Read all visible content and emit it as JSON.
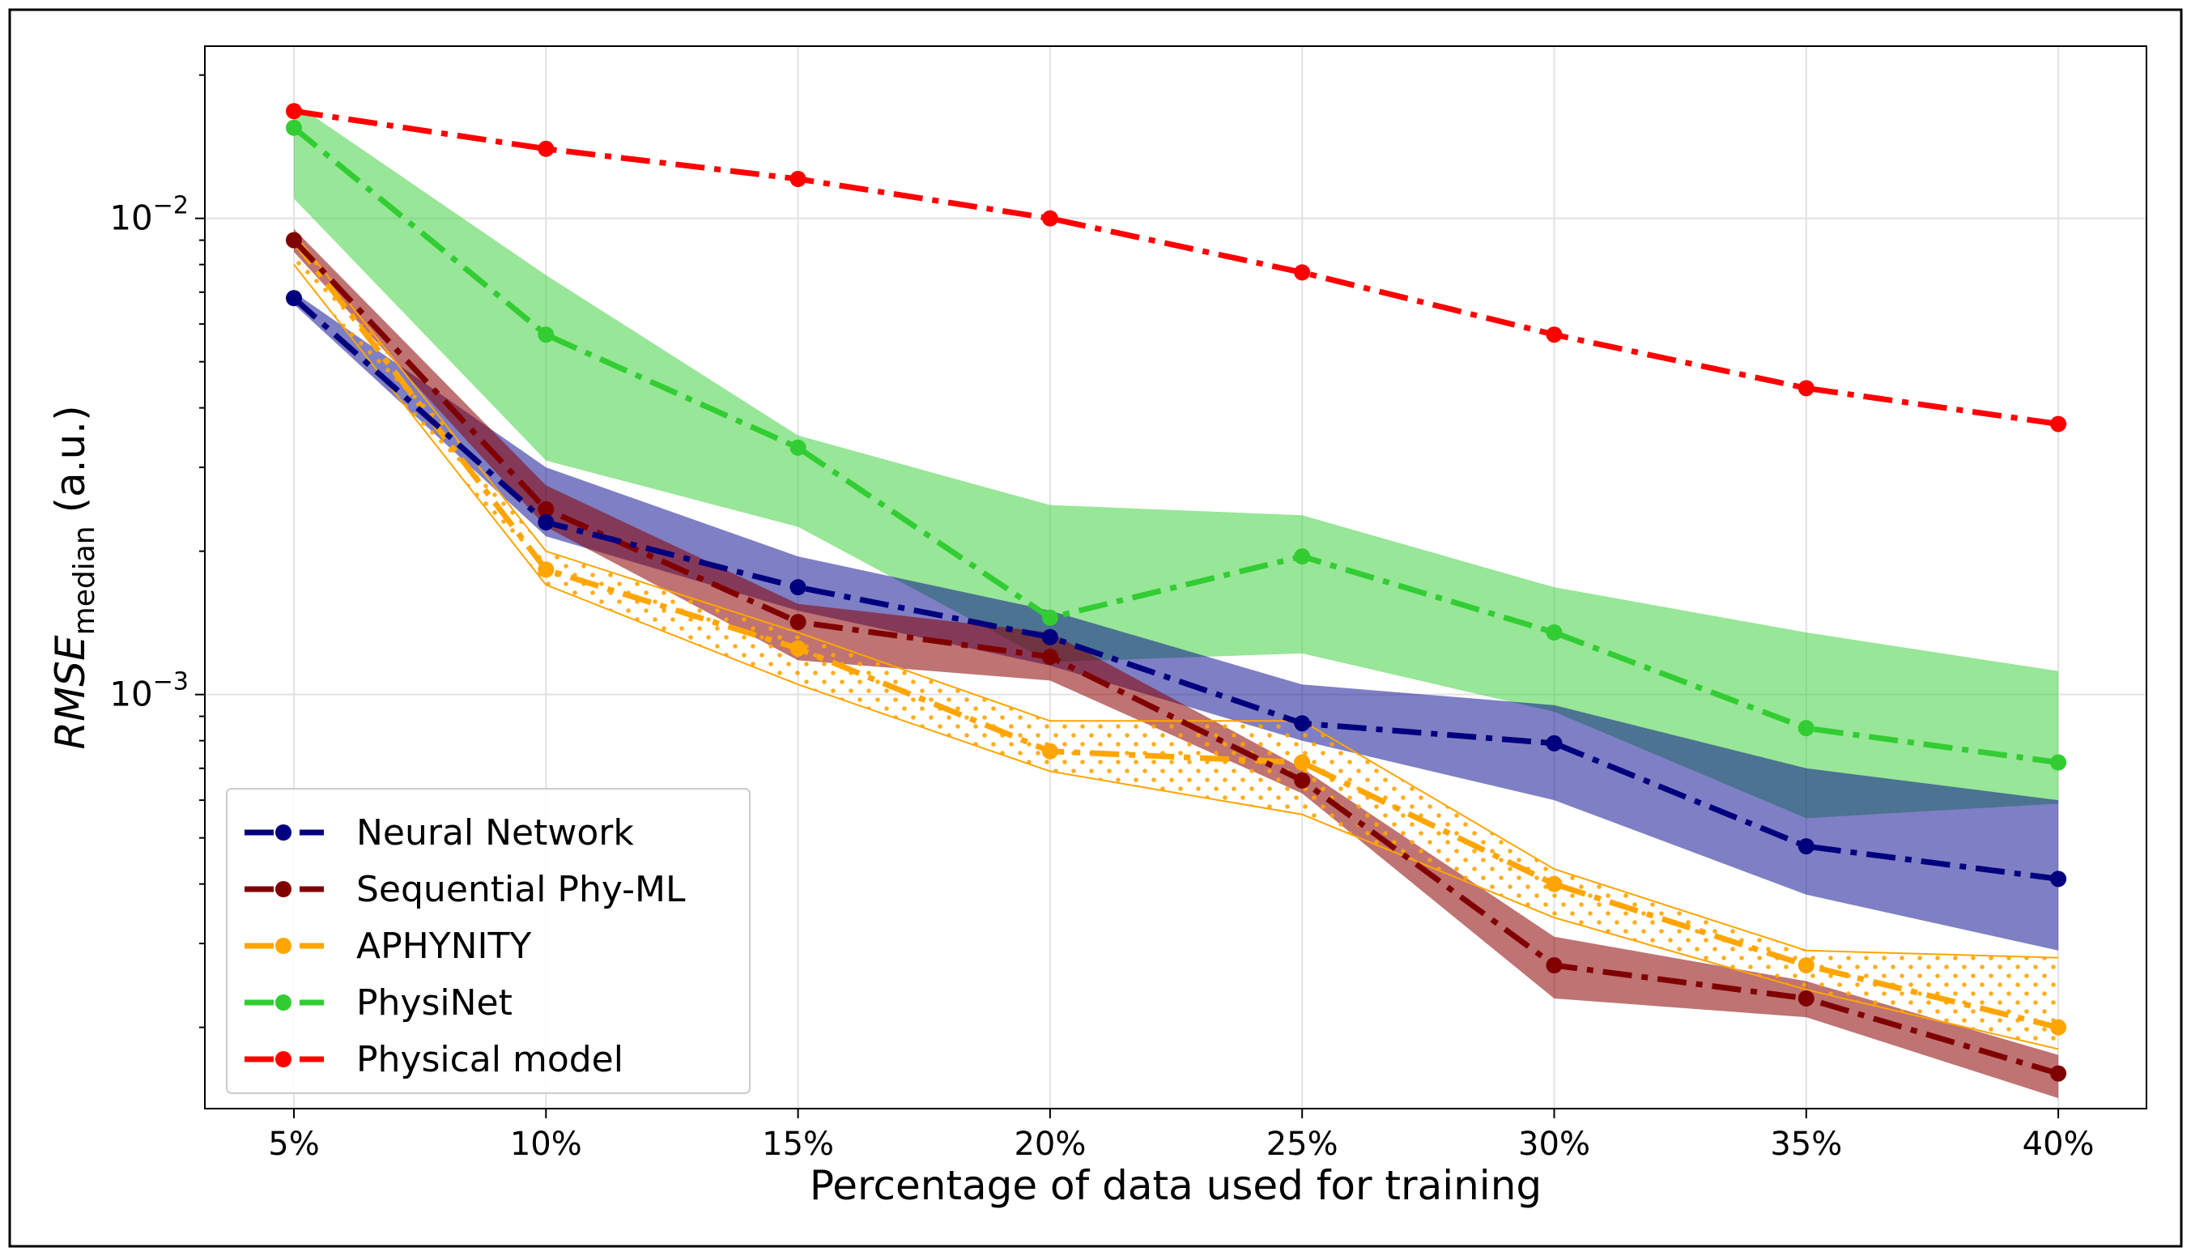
{
  "chart_data": {
    "type": "line",
    "title": "",
    "xlabel": "Percentage of data used for training",
    "ylabel": {
      "main": "RMSE",
      "subscript": "median",
      "suffix": " (a.u.)"
    },
    "yscale": "log",
    "ylim": [
      0.000135,
      0.023
    ],
    "grid": true,
    "legend_position": "lower-left",
    "categories": [
      "5%",
      "10%",
      "15%",
      "20%",
      "25%",
      "30%",
      "35%",
      "40%"
    ],
    "y_ticks": [
      {
        "value": 0.01,
        "base": "10",
        "exponent": "−2"
      },
      {
        "value": 0.001,
        "base": "10",
        "exponent": "−3"
      }
    ],
    "series": [
      {
        "name": "Neural Network",
        "color": "#00007f",
        "band_color": "#00008b",
        "values": [
          0.0068,
          0.0023,
          0.00168,
          0.00132,
          0.00087,
          0.00079,
          0.00048,
          0.00041
        ],
        "upper": [
          0.007,
          0.003,
          0.00195,
          0.0015,
          0.00105,
          0.00095,
          0.0007,
          0.0006
        ],
        "lower": [
          0.0066,
          0.00215,
          0.0015,
          0.00115,
          0.0008,
          0.0006,
          0.00038,
          0.00029
        ]
      },
      {
        "name": "Sequential Phy-ML",
        "color": "#800000",
        "band_color": "#8b0000",
        "values": [
          0.009,
          0.00245,
          0.00142,
          0.0012,
          0.00066,
          0.00027,
          0.00023,
          0.00016
        ],
        "upper": [
          0.0095,
          0.00275,
          0.00155,
          0.00135,
          0.0007,
          0.00031,
          0.00025,
          0.000175
        ],
        "lower": [
          0.0085,
          0.00225,
          0.00118,
          0.00107,
          0.00062,
          0.00023,
          0.00021,
          0.000142
        ]
      },
      {
        "name": "APHYNITY",
        "color": "#ffa500",
        "band_color": "#ffa500",
        "hatched": true,
        "values": [
          0.009,
          0.00183,
          0.00125,
          0.00076,
          0.00072,
          0.0004,
          0.00027,
          0.0002
        ],
        "upper": [
          0.0093,
          0.002,
          0.00135,
          0.00088,
          0.00088,
          0.00043,
          0.00029,
          0.00028
        ],
        "lower": [
          0.008,
          0.0017,
          0.00105,
          0.00069,
          0.00056,
          0.00034,
          0.00024,
          0.00018
        ]
      },
      {
        "name": "PhysiNet",
        "color": "#32cd32",
        "band_color": "#32cd32",
        "values": [
          0.0155,
          0.0057,
          0.0033,
          0.00145,
          0.00195,
          0.00135,
          0.00085,
          0.00072
        ],
        "upper": [
          0.0175,
          0.0076,
          0.0035,
          0.0025,
          0.00238,
          0.00168,
          0.00135,
          0.00112
        ],
        "lower": [
          0.011,
          0.0031,
          0.00225,
          0.00117,
          0.00122,
          0.00092,
          0.00055,
          0.00059
        ]
      },
      {
        "name": "Physical model",
        "color": "#ff0000",
        "values": [
          0.0168,
          0.014,
          0.0121,
          0.01,
          0.0077,
          0.0057,
          0.0044,
          0.0037
        ]
      }
    ]
  }
}
